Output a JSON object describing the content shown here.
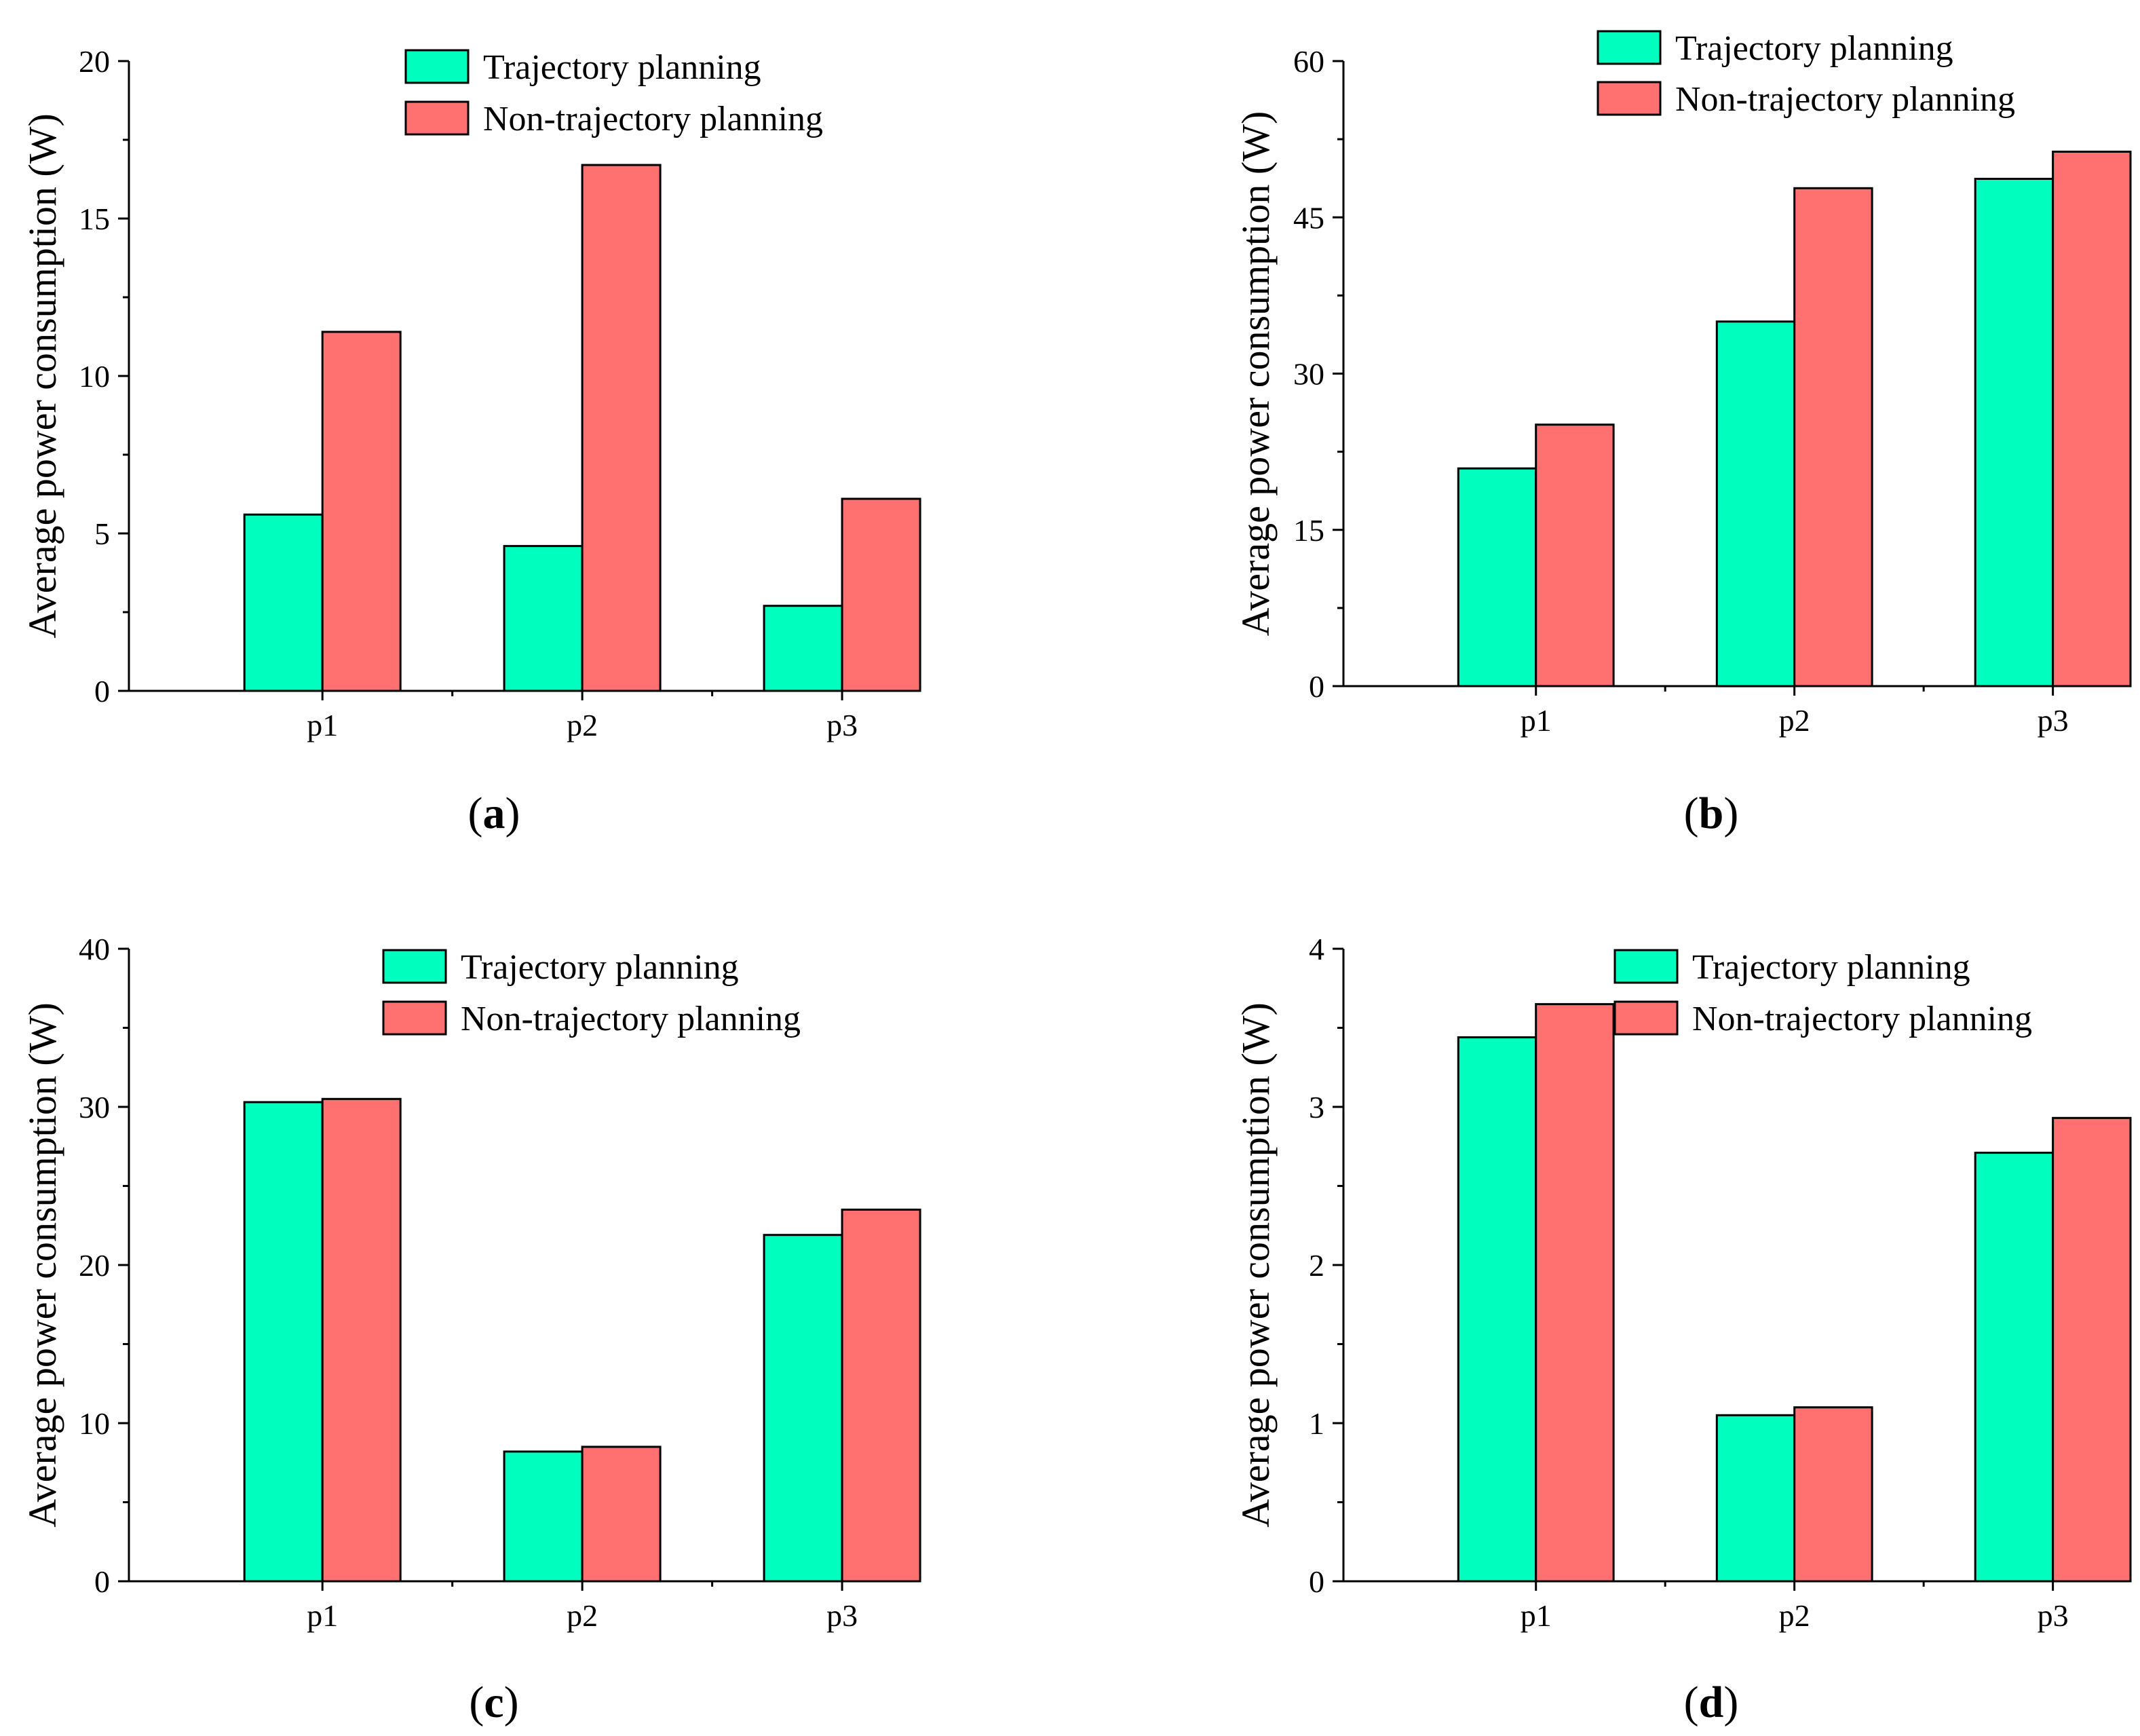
{
  "colors": {
    "trajectory": "#00FFBF",
    "non_trajectory": "#FF7070"
  },
  "chart_data": [
    {
      "id": "a",
      "panel_label": "a",
      "type": "bar",
      "categories": [
        "p1",
        "p2",
        "p3"
      ],
      "series": [
        {
          "name": "Trajectory planning",
          "values": [
            5.6,
            4.6,
            2.7
          ]
        },
        {
          "name": "Non-trajectory planning",
          "values": [
            11.4,
            16.7,
            6.1
          ]
        }
      ],
      "ylabel": "Average power consumption (W)",
      "ylim": [
        0,
        20
      ],
      "yticks": [
        "0",
        "5",
        "10",
        "15",
        "20"
      ],
      "legend": "top-center"
    },
    {
      "id": "b",
      "panel_label": "b",
      "type": "bar",
      "categories": [
        "p1",
        "p2",
        "p3"
      ],
      "series": [
        {
          "name": "Trajectory planning",
          "values": [
            20.9,
            35.0,
            48.7
          ]
        },
        {
          "name": "Non-trajectory planning",
          "values": [
            25.1,
            47.8,
            51.3
          ]
        }
      ],
      "ylabel": "Average power consumption (W)",
      "ylim": [
        0,
        60
      ],
      "yticks": [
        "0",
        "15",
        "30",
        "45",
        "60"
      ],
      "legend": "top-center"
    },
    {
      "id": "c",
      "panel_label": "c",
      "type": "bar",
      "categories": [
        "p1",
        "p2",
        "p3"
      ],
      "series": [
        {
          "name": "Trajectory planning",
          "values": [
            30.3,
            8.2,
            21.9
          ]
        },
        {
          "name": "Non-trajectory planning",
          "values": [
            30.5,
            8.5,
            23.5
          ]
        }
      ],
      "ylabel": "Average power consumption (W)",
      "ylim": [
        0,
        40
      ],
      "yticks": [
        "0",
        "10",
        "20",
        "30",
        "40"
      ],
      "legend": "top-center"
    },
    {
      "id": "d",
      "panel_label": "d",
      "type": "bar",
      "categories": [
        "p1",
        "p2",
        "p3"
      ],
      "series": [
        {
          "name": "Trajectory planning",
          "values": [
            3.44,
            1.05,
            2.71
          ]
        },
        {
          "name": "Non-trajectory planning",
          "values": [
            3.65,
            1.1,
            2.93
          ]
        }
      ],
      "ylabel": "Average power consumption (W)",
      "ylim": [
        0,
        4
      ],
      "yticks": [
        "0",
        "1",
        "2",
        "3",
        "4"
      ],
      "legend": "top-center"
    }
  ]
}
